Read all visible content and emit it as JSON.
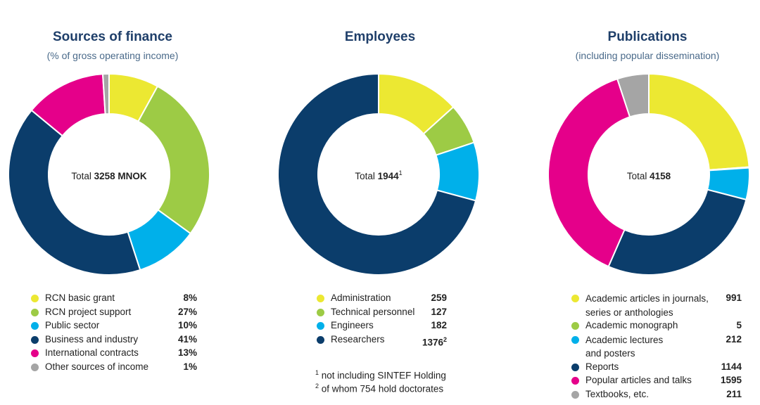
{
  "charts": [
    {
      "title": "Sources of finance",
      "subtitle": "(% of gross operating income)",
      "center_label": "Total",
      "center_value": "3258 MNOK",
      "center_sup": "",
      "legend": [
        {
          "label": "RCN basic grant",
          "value": "8%",
          "sup": ""
        },
        {
          "label": "RCN project support",
          "value": "27%",
          "sup": ""
        },
        {
          "label": "Public sector",
          "value": "10%",
          "sup": ""
        },
        {
          "label": "Business and industry",
          "value": "41%",
          "sup": ""
        },
        {
          "label": "International contracts",
          "value": "13%",
          "sup": ""
        },
        {
          "label": "Other sources of income",
          "value": "1%",
          "sup": ""
        }
      ],
      "footnotes": []
    },
    {
      "title": "Employees",
      "subtitle": "",
      "center_label": "Total",
      "center_value": "1944",
      "center_sup": "1",
      "legend": [
        {
          "label": "Administration",
          "value": "259",
          "sup": ""
        },
        {
          "label": "Technical personnel",
          "value": "127",
          "sup": ""
        },
        {
          "label": "Engineers",
          "value": "182",
          "sup": ""
        },
        {
          "label": "Researchers",
          "value": "1376",
          "sup": "2"
        }
      ],
      "footnotes": [
        {
          "sup": "1",
          "text": "not including SINTEF Holding"
        },
        {
          "sup": "2",
          "text": "of whom 754 hold doctorates"
        }
      ]
    },
    {
      "title": "Publications",
      "subtitle": "(including popular dissemination)",
      "center_label": "Total",
      "center_value": "4158",
      "center_sup": "",
      "legend": [
        {
          "label": "Academic articles in journals,",
          "label2": "series or anthologies",
          "value": "991",
          "sup": ""
        },
        {
          "label": "Academic monograph",
          "value": "5",
          "sup": ""
        },
        {
          "label": "Academic lectures",
          "label2": "and posters",
          "value": "212",
          "sup": ""
        },
        {
          "label": "Reports",
          "value": "1144",
          "sup": ""
        },
        {
          "label": "Popular articles and talks",
          "value": "1595",
          "sup": ""
        },
        {
          "label": "Textbooks, etc.",
          "value": "211",
          "sup": ""
        }
      ],
      "footnotes": []
    }
  ],
  "chart_data": [
    {
      "type": "pie",
      "title": "Sources of finance",
      "subtitle": "(% of gross operating income)",
      "unit": "%",
      "categories": [
        "RCN basic grant",
        "RCN project support",
        "Public sector",
        "Business and industry",
        "International contracts",
        "Other sources of income"
      ],
      "values": [
        8,
        27,
        10,
        41,
        13,
        1
      ],
      "colors": [
        "#ece832",
        "#9dcb45",
        "#00b0ea",
        "#0b3d6b",
        "#e5008a",
        "#a5a5a5"
      ],
      "total": "3258 MNOK"
    },
    {
      "type": "pie",
      "title": "Employees",
      "categories": [
        "Administration",
        "Technical personnel",
        "Engineers",
        "Researchers"
      ],
      "values": [
        259,
        127,
        182,
        1376
      ],
      "colors": [
        "#ece832",
        "#9dcb45",
        "#00b0ea",
        "#0b3d6b"
      ],
      "total": "1944"
    },
    {
      "type": "pie",
      "title": "Publications",
      "subtitle": "(including popular dissemination)",
      "categories": [
        "Academic articles in journals, series or anthologies",
        "Academic monograph",
        "Academic lectures and posters",
        "Reports",
        "Popular articles and talks",
        "Textbooks, etc."
      ],
      "values": [
        991,
        5,
        212,
        1144,
        1595,
        211
      ],
      "colors": [
        "#ece832",
        "#9dcb45",
        "#00b0ea",
        "#0b3d6b",
        "#e5008a",
        "#a5a5a5"
      ],
      "total": "4158"
    }
  ]
}
